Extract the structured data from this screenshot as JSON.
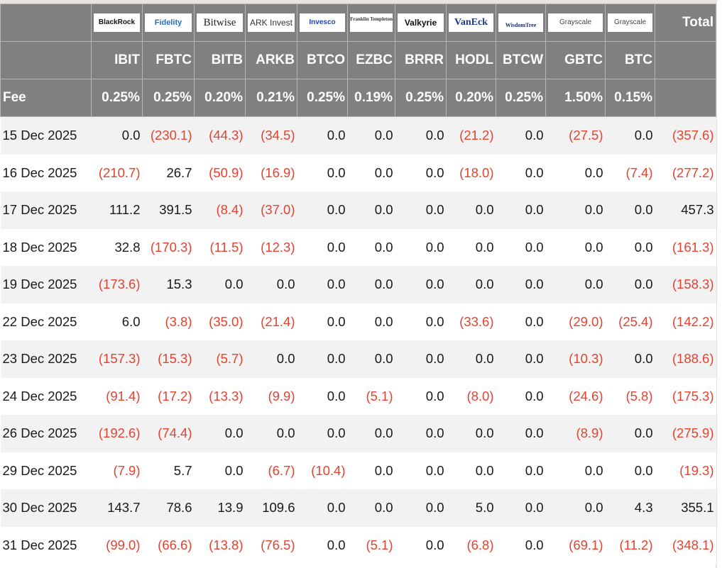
{
  "header": {
    "issuers": [
      "BlackRock",
      "Fidelity",
      "Bitwise",
      "ARK Invest",
      "Invesco",
      "Franklin Templeton",
      "Valkyrie",
      "VanEck",
      "WisdomTree",
      "Grayscale",
      "Grayscale"
    ],
    "total_label": "Total",
    "tickers": [
      "IBIT",
      "FBTC",
      "BITB",
      "ARKB",
      "BTCO",
      "EZBC",
      "BRRR",
      "HODL",
      "BTCW",
      "GBTC",
      "BTC"
    ],
    "fee_label": "Fee",
    "fees": [
      "0.25%",
      "0.25%",
      "0.20%",
      "0.21%",
      "0.25%",
      "0.19%",
      "0.25%",
      "0.20%",
      "0.25%",
      "1.50%",
      "0.15%"
    ]
  },
  "colors": {
    "header_bg": "#808080",
    "negative": "#e8412e",
    "row_alt": "#f2f2f2"
  },
  "rows": [
    {
      "date": "15 Dec 2025",
      "values": [
        "0.0",
        "(230.1)",
        "(44.3)",
        "(34.5)",
        "0.0",
        "0.0",
        "0.0",
        "(21.2)",
        "0.0",
        "(27.5)",
        "0.0",
        "(357.6)"
      ]
    },
    {
      "date": "16 Dec 2025",
      "values": [
        "(210.7)",
        "26.7",
        "(50.9)",
        "(16.9)",
        "0.0",
        "0.0",
        "0.0",
        "(18.0)",
        "0.0",
        "0.0",
        "(7.4)",
        "(277.2)"
      ]
    },
    {
      "date": "17 Dec 2025",
      "values": [
        "111.2",
        "391.5",
        "(8.4)",
        "(37.0)",
        "0.0",
        "0.0",
        "0.0",
        "0.0",
        "0.0",
        "0.0",
        "0.0",
        "457.3"
      ]
    },
    {
      "date": "18 Dec 2025",
      "values": [
        "32.8",
        "(170.3)",
        "(11.5)",
        "(12.3)",
        "0.0",
        "0.0",
        "0.0",
        "0.0",
        "0.0",
        "0.0",
        "0.0",
        "(161.3)"
      ]
    },
    {
      "date": "19 Dec 2025",
      "values": [
        "(173.6)",
        "15.3",
        "0.0",
        "0.0",
        "0.0",
        "0.0",
        "0.0",
        "0.0",
        "0.0",
        "0.0",
        "0.0",
        "(158.3)"
      ]
    },
    {
      "date": "22 Dec 2025",
      "values": [
        "6.0",
        "(3.8)",
        "(35.0)",
        "(21.4)",
        "0.0",
        "0.0",
        "0.0",
        "(33.6)",
        "0.0",
        "(29.0)",
        "(25.4)",
        "(142.2)"
      ]
    },
    {
      "date": "23 Dec 2025",
      "values": [
        "(157.3)",
        "(15.3)",
        "(5.7)",
        "0.0",
        "0.0",
        "0.0",
        "0.0",
        "0.0",
        "0.0",
        "(10.3)",
        "0.0",
        "(188.6)"
      ]
    },
    {
      "date": "24 Dec 2025",
      "values": [
        "(91.4)",
        "(17.2)",
        "(13.3)",
        "(9.9)",
        "0.0",
        "(5.1)",
        "0.0",
        "(8.0)",
        "0.0",
        "(24.6)",
        "(5.8)",
        "(175.3)"
      ]
    },
    {
      "date": "26 Dec 2025",
      "values": [
        "(192.6)",
        "(74.4)",
        "0.0",
        "0.0",
        "0.0",
        "0.0",
        "0.0",
        "0.0",
        "0.0",
        "(8.9)",
        "0.0",
        "(275.9)"
      ]
    },
    {
      "date": "29 Dec 2025",
      "values": [
        "(7.9)",
        "5.7",
        "0.0",
        "(6.7)",
        "(10.4)",
        "0.0",
        "0.0",
        "0.0",
        "0.0",
        "0.0",
        "0.0",
        "(19.3)"
      ]
    },
    {
      "date": "30 Dec 2025",
      "values": [
        "143.7",
        "78.6",
        "13.9",
        "109.6",
        "0.0",
        "0.0",
        "0.0",
        "5.0",
        "0.0",
        "0.0",
        "4.3",
        "355.1"
      ]
    },
    {
      "date": "31 Dec 2025",
      "values": [
        "(99.0)",
        "(66.6)",
        "(13.8)",
        "(76.5)",
        "0.0",
        "(5.1)",
        "0.0",
        "(6.8)",
        "0.0",
        "(69.1)",
        "(11.2)",
        "(348.1)"
      ]
    }
  ]
}
